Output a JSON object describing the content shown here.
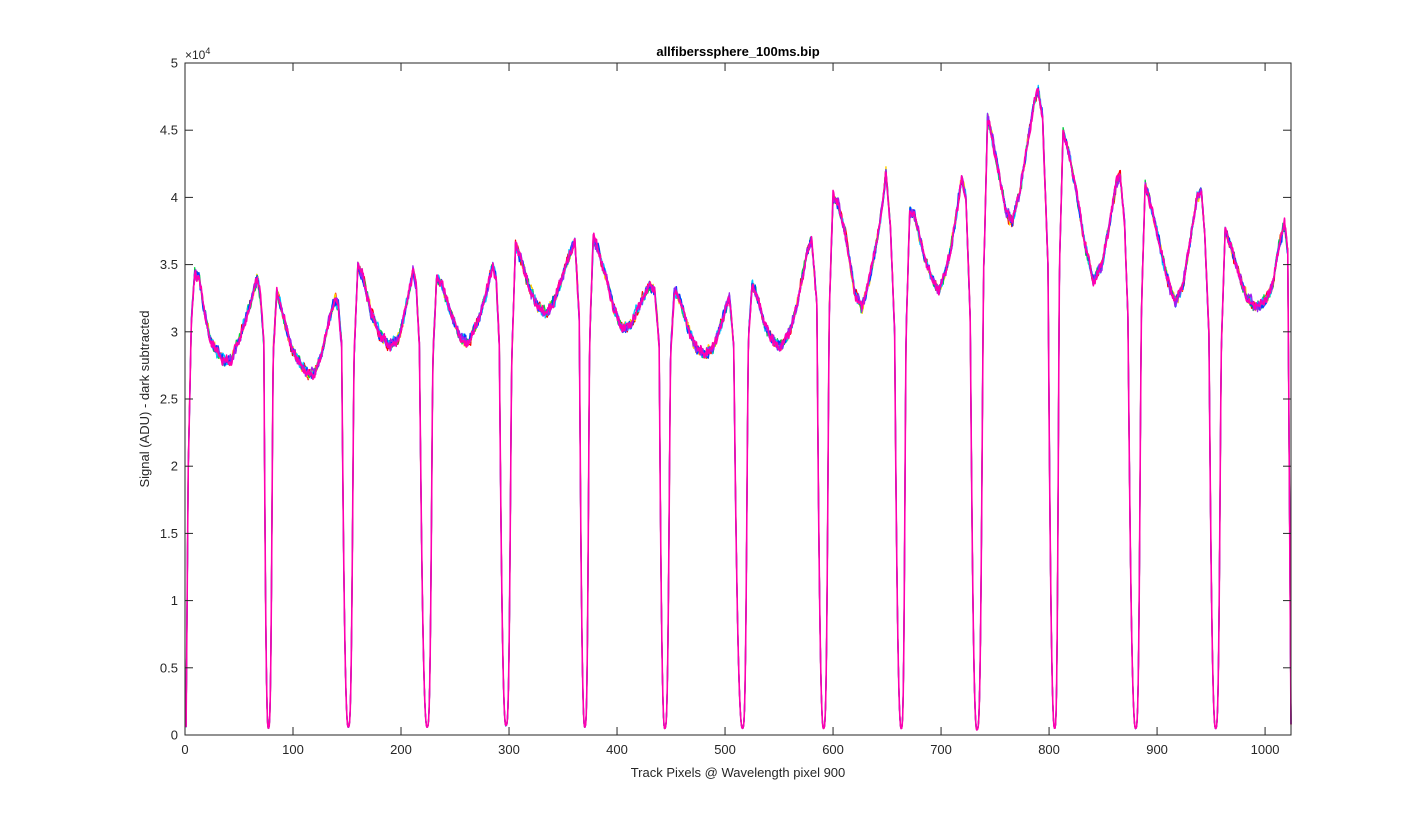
{
  "chart_data": {
    "type": "line",
    "title": "allfiberssphere_100ms.bip",
    "xlabel": "Track Pixels @ Wavelength pixel 900",
    "ylabel": "Signal (ADU) - dark subtracted",
    "y_exponent_label": "×10",
    "y_exponent_power": "4",
    "xlim": [
      0,
      1024
    ],
    "ylim": [
      0,
      50000
    ],
    "x_ticks": [
      0,
      100,
      200,
      300,
      400,
      500,
      600,
      700,
      800,
      900,
      1000
    ],
    "x_tick_labels": [
      "0",
      "100",
      "200",
      "300",
      "400",
      "500",
      "600",
      "700",
      "800",
      "900",
      "1000"
    ],
    "y_ticks": [
      0,
      5000,
      10000,
      15000,
      20000,
      25000,
      30000,
      35000,
      40000,
      45000,
      50000
    ],
    "y_tick_labels": [
      "0",
      "0.5",
      "1",
      "1.5",
      "2",
      "2.5",
      "3",
      "3.5",
      "4",
      "4.5",
      "5"
    ],
    "grid": false,
    "series_colors": [
      "#ff0000",
      "#ffd000",
      "#00d040",
      "#00c8ff",
      "#0040ff",
      "#a020f0",
      "#ff00b0"
    ],
    "fibers": [
      {
        "x_start": 1,
        "x_end": 73,
        "profile": [
          [
            1,
            600
          ],
          [
            3,
            20000
          ],
          [
            6,
            31000
          ],
          [
            9,
            34500
          ],
          [
            13,
            34000
          ],
          [
            18,
            31500
          ],
          [
            23,
            29500
          ],
          [
            30,
            28500
          ],
          [
            37,
            27800
          ],
          [
            43,
            28000
          ],
          [
            50,
            29500
          ],
          [
            56,
            31000
          ],
          [
            62,
            32500
          ],
          [
            67,
            34000
          ],
          [
            70,
            32500
          ],
          [
            73,
            29000
          ]
        ]
      },
      {
        "x_start": 82,
        "x_end": 145,
        "profile": [
          [
            82,
            29000
          ],
          [
            85,
            33000
          ],
          [
            90,
            31500
          ],
          [
            98,
            29000
          ],
          [
            105,
            27800
          ],
          [
            112,
            27000
          ],
          [
            120,
            26800
          ],
          [
            127,
            28500
          ],
          [
            134,
            31000
          ],
          [
            139,
            32500
          ],
          [
            142,
            32000
          ],
          [
            145,
            29000
          ]
        ]
      },
      {
        "x_start": 157,
        "x_end": 217,
        "profile": [
          [
            157,
            29000
          ],
          [
            160,
            35000
          ],
          [
            165,
            34000
          ],
          [
            172,
            31500
          ],
          [
            180,
            29800
          ],
          [
            190,
            29000
          ],
          [
            198,
            29500
          ],
          [
            205,
            32000
          ],
          [
            211,
            34500
          ],
          [
            214,
            33500
          ],
          [
            217,
            29000
          ]
        ]
      },
      {
        "x_start": 230,
        "x_end": 291,
        "profile": [
          [
            230,
            29000
          ],
          [
            233,
            34000
          ],
          [
            238,
            33500
          ],
          [
            246,
            31500
          ],
          [
            255,
            29500
          ],
          [
            262,
            29200
          ],
          [
            270,
            30500
          ],
          [
            278,
            32500
          ],
          [
            285,
            35000
          ],
          [
            288,
            34000
          ],
          [
            291,
            29000
          ]
        ]
      },
      {
        "x_start": 303,
        "x_end": 365,
        "profile": [
          [
            303,
            29000
          ],
          [
            306,
            36500
          ],
          [
            311,
            35500
          ],
          [
            318,
            33500
          ],
          [
            327,
            31800
          ],
          [
            335,
            31300
          ],
          [
            343,
            32500
          ],
          [
            351,
            34500
          ],
          [
            357,
            36000
          ],
          [
            361,
            36800
          ],
          [
            365,
            31000
          ]
        ]
      },
      {
        "x_start": 375,
        "x_end": 439,
        "profile": [
          [
            375,
            30000
          ],
          [
            378,
            37000
          ],
          [
            383,
            36000
          ],
          [
            390,
            34000
          ],
          [
            398,
            31500
          ],
          [
            405,
            30200
          ],
          [
            413,
            30500
          ],
          [
            421,
            32000
          ],
          [
            430,
            33500
          ],
          [
            435,
            33000
          ],
          [
            439,
            29000
          ]
        ]
      },
      {
        "x_start": 450,
        "x_end": 508,
        "profile": [
          [
            450,
            29000
          ],
          [
            453,
            33000
          ],
          [
            458,
            32500
          ],
          [
            465,
            30500
          ],
          [
            473,
            28800
          ],
          [
            482,
            28300
          ],
          [
            490,
            29000
          ],
          [
            498,
            31000
          ],
          [
            504,
            32800
          ],
          [
            508,
            29000
          ]
        ]
      },
      {
        "x_start": 522,
        "x_end": 585,
        "profile": [
          [
            522,
            30000
          ],
          [
            525,
            33500
          ],
          [
            530,
            32500
          ],
          [
            537,
            30500
          ],
          [
            545,
            29200
          ],
          [
            553,
            29000
          ],
          [
            561,
            30200
          ],
          [
            568,
            32500
          ],
          [
            575,
            35500
          ],
          [
            580,
            37000
          ],
          [
            585,
            32000
          ]
        ]
      },
      {
        "x_start": 597,
        "x_end": 657,
        "profile": [
          [
            597,
            33000
          ],
          [
            600,
            40000
          ],
          [
            605,
            39500
          ],
          [
            612,
            37000
          ],
          [
            620,
            33000
          ],
          [
            627,
            31800
          ],
          [
            634,
            34000
          ],
          [
            641,
            37000
          ],
          [
            646,
            39500
          ],
          [
            649,
            42000
          ],
          [
            653,
            38000
          ],
          [
            657,
            30000
          ]
        ]
      },
      {
        "x_start": 668,
        "x_end": 727,
        "profile": [
          [
            668,
            31000
          ],
          [
            671,
            39000
          ],
          [
            676,
            38500
          ],
          [
            683,
            36000
          ],
          [
            691,
            34000
          ],
          [
            698,
            33000
          ],
          [
            706,
            35000
          ],
          [
            713,
            38000
          ],
          [
            719,
            41500
          ],
          [
            723,
            40000
          ],
          [
            727,
            31000
          ]
        ]
      },
      {
        "x_start": 740,
        "x_end": 799,
        "profile": [
          [
            740,
            36000
          ],
          [
            743,
            46000
          ],
          [
            747,
            44500
          ],
          [
            753,
            42000
          ],
          [
            760,
            39000
          ],
          [
            766,
            38200
          ],
          [
            773,
            40500
          ],
          [
            780,
            44000
          ],
          [
            786,
            47000
          ],
          [
            790,
            48000
          ],
          [
            794,
            46000
          ],
          [
            799,
            35000
          ]
        ]
      },
      {
        "x_start": 810,
        "x_end": 873,
        "profile": [
          [
            810,
            36000
          ],
          [
            813,
            45000
          ],
          [
            818,
            43500
          ],
          [
            825,
            40500
          ],
          [
            833,
            36500
          ],
          [
            841,
            33800
          ],
          [
            849,
            35000
          ],
          [
            856,
            38000
          ],
          [
            862,
            41000
          ],
          [
            866,
            41500
          ],
          [
            870,
            38000
          ],
          [
            873,
            31000
          ]
        ]
      },
      {
        "x_start": 886,
        "x_end": 948,
        "profile": [
          [
            886,
            33000
          ],
          [
            889,
            41000
          ],
          [
            894,
            39500
          ],
          [
            901,
            37000
          ],
          [
            909,
            34000
          ],
          [
            917,
            32200
          ],
          [
            924,
            33500
          ],
          [
            931,
            37000
          ],
          [
            937,
            40000
          ],
          [
            941,
            40500
          ],
          [
            944,
            37500
          ],
          [
            948,
            30000
          ]
        ]
      },
      {
        "x_start": 960,
        "x_end": 1024,
        "profile": [
          [
            960,
            30000
          ],
          [
            963,
            37500
          ],
          [
            968,
            36500
          ],
          [
            975,
            34500
          ],
          [
            983,
            32500
          ],
          [
            991,
            31800
          ],
          [
            999,
            32200
          ],
          [
            1007,
            33500
          ],
          [
            1013,
            36500
          ],
          [
            1018,
            38000
          ],
          [
            1021,
            36000
          ],
          [
            1024,
            800
          ]
        ]
      }
    ],
    "troughs": [
      {
        "x": 77,
        "y": 500
      },
      {
        "x": 151,
        "y": 600
      },
      {
        "x": 224,
        "y": 600
      },
      {
        "x": 297,
        "y": 700
      },
      {
        "x": 370,
        "y": 600
      },
      {
        "x": 444,
        "y": 500
      },
      {
        "x": 516,
        "y": 500
      },
      {
        "x": 591,
        "y": 500
      },
      {
        "x": 663,
        "y": 500
      },
      {
        "x": 733,
        "y": 400
      },
      {
        "x": 805,
        "y": 500
      },
      {
        "x": 880,
        "y": 500
      },
      {
        "x": 954,
        "y": 500
      }
    ]
  }
}
